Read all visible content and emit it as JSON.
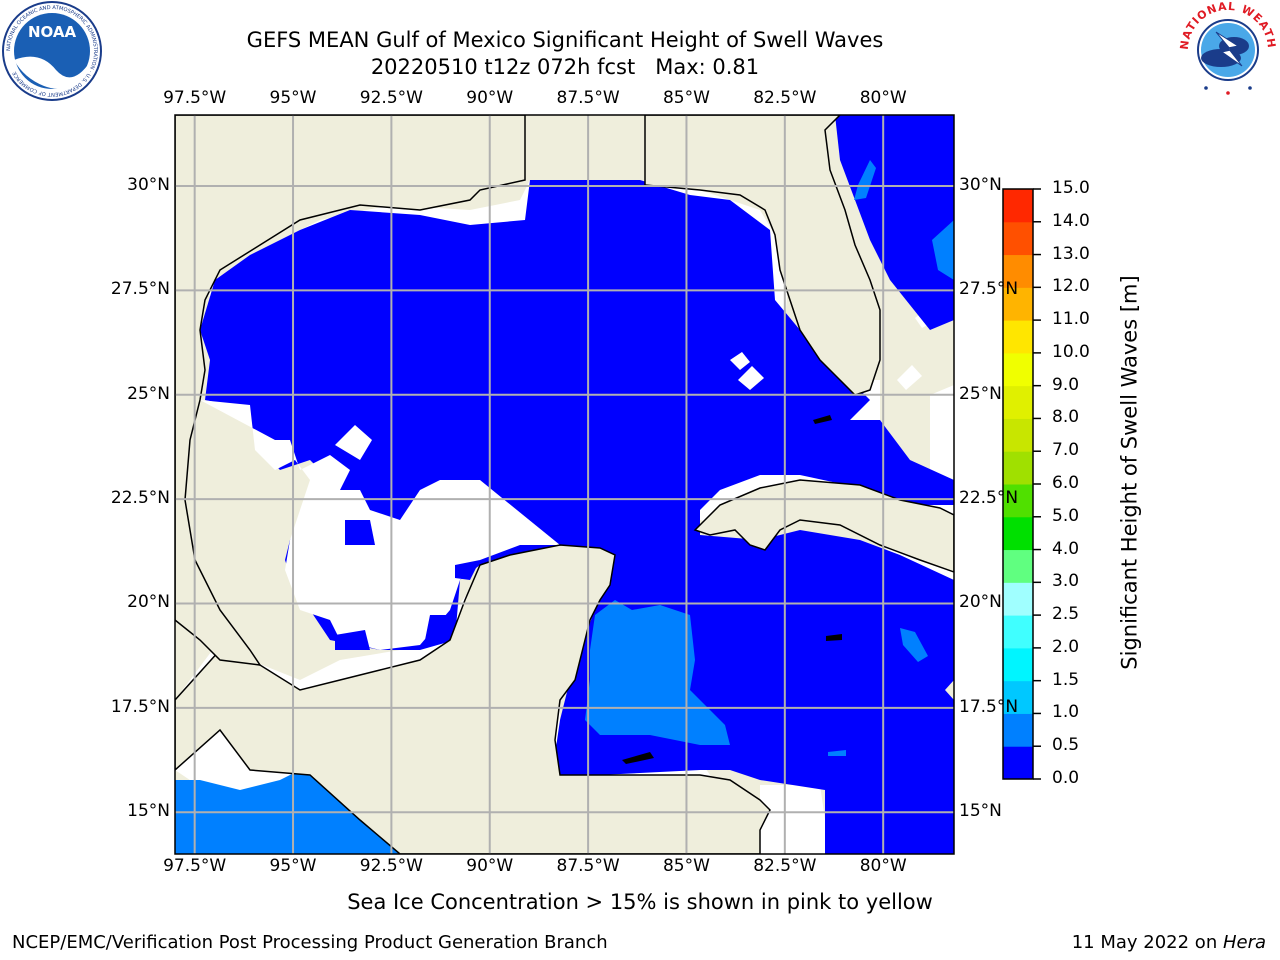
{
  "header": {
    "title_line1": "GEFS MEAN Gulf of Mexico Significant Height of Swell Waves",
    "title_line2": "20220510 t12z 072h fcst   Max: 0.81"
  },
  "logos": {
    "left": "NOAA",
    "left_ring_text": "NATIONAL OCEANIC AND ATMOSPHERIC ADMINISTRATION · U.S. DEPARTMENT OF COMMERCE",
    "right_ring_text": "NATIONAL WEATHER SERVICE"
  },
  "map": {
    "lon_labels": [
      "97.5°W",
      "95°W",
      "92.5°W",
      "90°W",
      "87.5°W",
      "85°W",
      "82.5°W",
      "80°W"
    ],
    "lat_labels_left": [
      "30°N",
      "27.5°N",
      "25°N",
      "22.5°N",
      "20°N",
      "17.5°N",
      "15°N"
    ],
    "lat_labels_right": [
      "30°N",
      "27.5°N",
      "25°N",
      "22.5°N",
      "20°N",
      "17.5°N",
      "15°N"
    ],
    "lon_range": [
      -98,
      -78.2
    ],
    "lat_range": [
      14,
      31.7
    ],
    "colors": {
      "land": "#efeedc",
      "no_data": "#ffffff",
      "swell_0_0p5": "#0000ff",
      "swell_0p5_1": "#0080ff",
      "grid": "#b0b0b0"
    }
  },
  "colorbar": {
    "label": "Significant Height of Swell Waves [m]",
    "ticks": [
      "0.0",
      "0.5",
      "1.0",
      "1.5",
      "2.0",
      "2.5",
      "3.0",
      "4.0",
      "5.0",
      "6.0",
      "7.0",
      "8.0",
      "9.0",
      "10.0",
      "11.0",
      "12.0",
      "13.0",
      "14.0",
      "15.0"
    ],
    "colors": [
      "#0000ff",
      "#0080ff",
      "#00c8ff",
      "#00f5ff",
      "#40ffff",
      "#a0ffff",
      "#60ff80",
      "#00e000",
      "#50e000",
      "#a0e000",
      "#c8e600",
      "#e0f000",
      "#f0ff00",
      "#ffe600",
      "#ffb400",
      "#ff8c00",
      "#ff5000",
      "#ff2800"
    ]
  },
  "footer": {
    "note": "Sea Ice Concentration > 15% is shown in pink to yellow",
    "left": "NCEP/EMC/Verification Post Processing Product Generation Branch",
    "right_prefix": "11 May 2022 on ",
    "right_host": "Hera"
  }
}
